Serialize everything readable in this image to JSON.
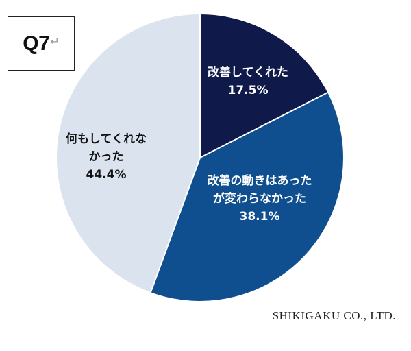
{
  "question_badge": {
    "label": "Q7",
    "mark": "↵"
  },
  "company": "SHIKIGAKU CO., LTD.",
  "colors": {
    "slice_1": "#0f1a4a",
    "slice_2": "#0f4f8f",
    "slice_3": "#dbe3ef",
    "label_light": "#ffffff",
    "label_dark": "#111111",
    "separator": "#ffffff"
  },
  "chart_data": {
    "type": "pie",
    "start_angle_deg": 0,
    "direction": "clockwise",
    "slices": [
      {
        "label_lines": [
          "改善してくれた",
          "17.5%"
        ],
        "value": 17.5
      },
      {
        "label_lines": [
          "改善の動きはあった",
          "が変わらなかった",
          "38.1%"
        ],
        "value": 38.1
      },
      {
        "label_lines": [
          "何もしてくれな",
          "かった",
          "44.4%"
        ],
        "value": 44.4
      }
    ]
  }
}
